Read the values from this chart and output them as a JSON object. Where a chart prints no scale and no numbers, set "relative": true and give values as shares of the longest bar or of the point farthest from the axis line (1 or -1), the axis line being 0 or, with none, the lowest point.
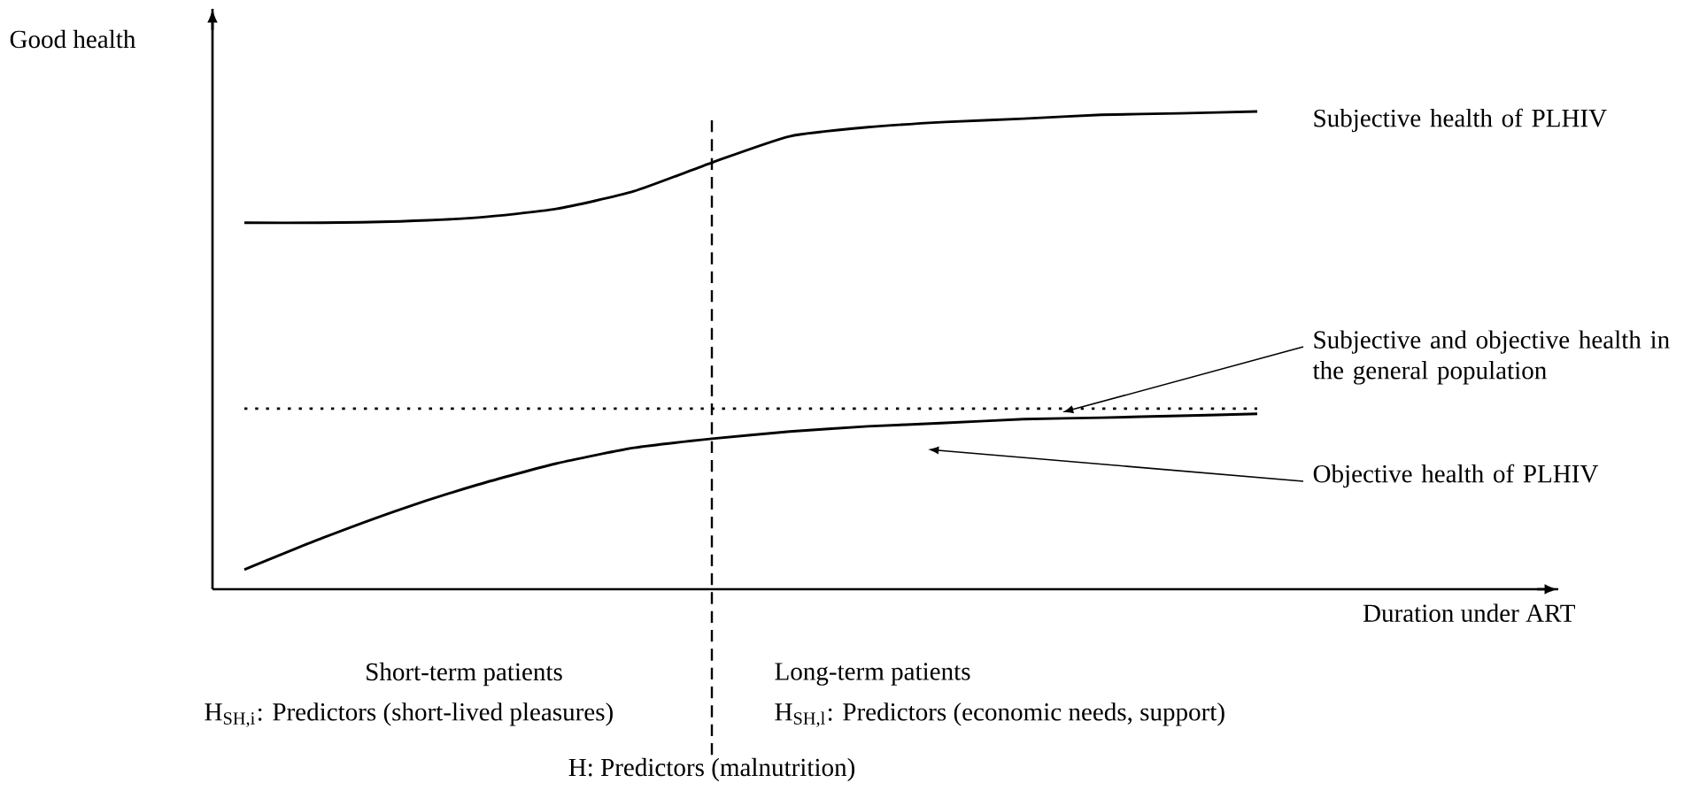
{
  "chart_data": {
    "type": "line",
    "relative": true,
    "xlabel": "Duration under ART",
    "ylabel": "Good health",
    "categories": [
      null,
      null,
      null,
      null,
      null,
      null,
      null,
      null,
      null,
      null,
      null,
      null,
      null,
      null
    ],
    "series": [
      {
        "name": "Subjective health of PLHIV",
        "color": "#000000",
        "line_style": "solid",
        "values": [
          0.767,
          0.767,
          0.77,
          0.778,
          0.796,
          0.833,
          0.893,
          0.948,
          0.967,
          0.978,
          0.985,
          0.993,
          0.996,
          1
        ]
      },
      {
        "name": "Subjective and objective health in the general population",
        "color": "#000000",
        "line_style": "dotted",
        "values": [
          0.378,
          0.378,
          0.378,
          0.378,
          0.378,
          0.378,
          0.378,
          0.378,
          0.378,
          0.378,
          0.378,
          0.378,
          0.378,
          0.378
        ]
      },
      {
        "name": "Objective health of PLHIV",
        "color": "#000000",
        "line_style": "solid",
        "values": [
          0.041,
          0.107,
          0.167,
          0.219,
          0.263,
          0.296,
          0.315,
          0.33,
          0.341,
          0.348,
          0.356,
          0.359,
          0.363,
          0.367
        ]
      }
    ],
    "annotations": [
      "Short-term patients",
      "Long-term patients",
      "H$_{SH,i}$: Predictors (short-lived pleasures)",
      "H$_{SH,l}$: Predictors (economic needs, support)",
      "H: Predictors (malnutrition)"
    ],
    "legend": false,
    "marker": "none"
  }
}
